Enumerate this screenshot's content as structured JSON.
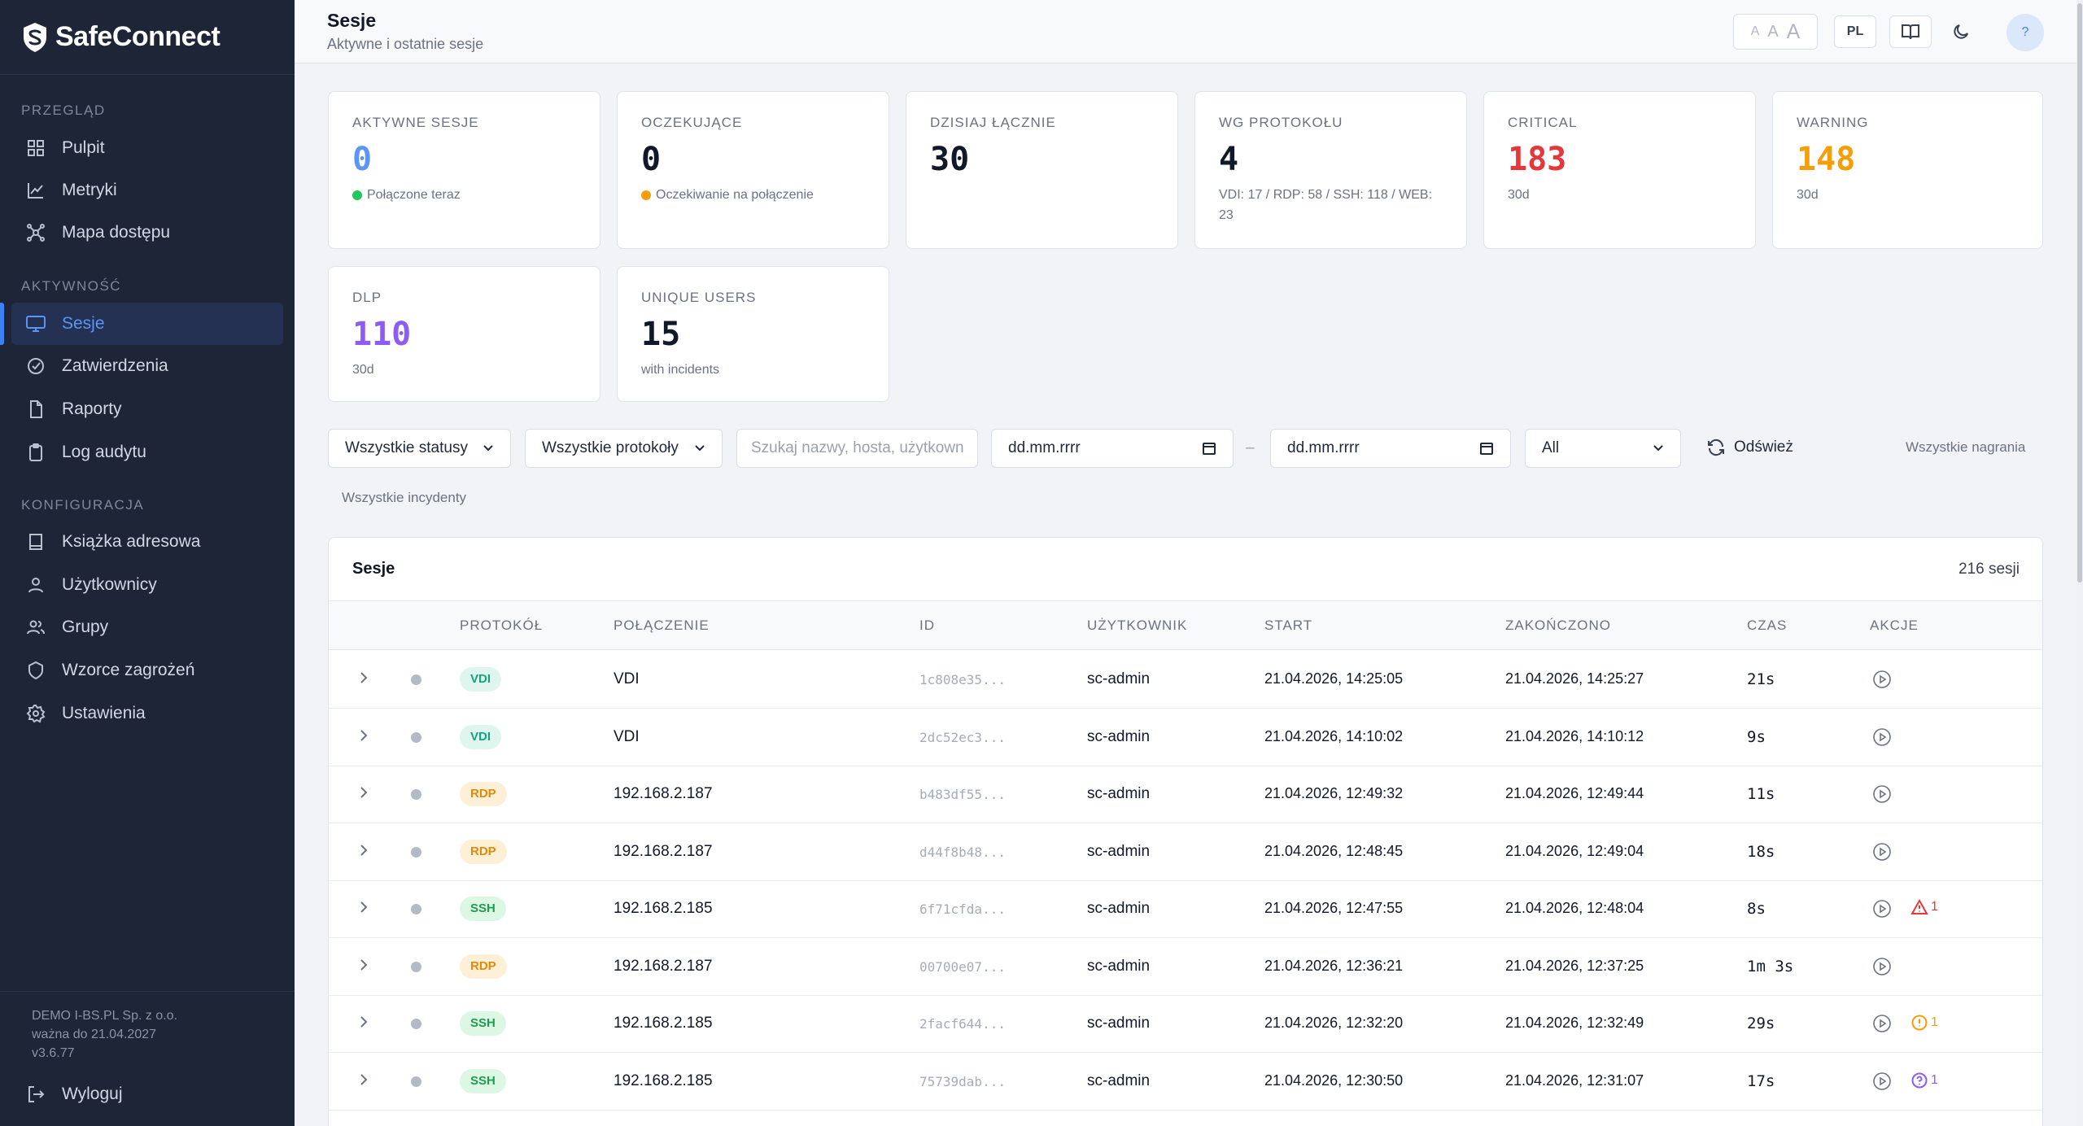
{
  "brand": {
    "name": "SafeConnect"
  },
  "sidebar": {
    "sections": [
      {
        "title": "PRZEGLĄD"
      },
      {
        "title": "AKTYWNOŚĆ"
      },
      {
        "title": "KONFIGURACJA"
      }
    ],
    "items": [
      {
        "label": "Pulpit",
        "icon": "grid-icon"
      },
      {
        "label": "Metryki",
        "icon": "chart-line-icon"
      },
      {
        "label": "Mapa dostępu",
        "icon": "network-map-icon"
      },
      {
        "label": "Sesje",
        "icon": "monitor-icon",
        "active": true
      },
      {
        "label": "Zatwierdzenia",
        "icon": "check-circle-icon"
      },
      {
        "label": "Raporty",
        "icon": "document-icon"
      },
      {
        "label": "Log audytu",
        "icon": "clipboard-icon"
      },
      {
        "label": "Książka adresowa",
        "icon": "book-icon"
      },
      {
        "label": "Użytkownicy",
        "icon": "user-icon"
      },
      {
        "label": "Grupy",
        "icon": "users-icon"
      },
      {
        "label": "Wzorce zagrożeń",
        "icon": "shield-icon"
      },
      {
        "label": "Ustawienia",
        "icon": "gear-icon"
      }
    ],
    "license": {
      "line1": "DEMO I-BS.PL Sp. z o.o.",
      "line2": "ważna do 21.04.2027",
      "version": "v3.6.77"
    },
    "logout_label": "Wyloguj"
  },
  "header": {
    "title": "Sesje",
    "subtitle": "Aktywne i ostatnie sesje",
    "font_sizes": [
      "A",
      "A",
      "A"
    ],
    "language": "PL",
    "help": "?"
  },
  "stats": [
    {
      "label": "AKTYWNE SESJE",
      "value": "0",
      "sub": "Połączone teraz",
      "color": "#5b95f5",
      "dot": "#22c55e"
    },
    {
      "label": "OCZEKUJĄCE",
      "value": "0",
      "sub": "Oczekiwanie na połączenie",
      "color": "#111827",
      "dot": "#f59e0b"
    },
    {
      "label": "DZISIAJ ŁĄCZNIE",
      "value": "30",
      "sub": "",
      "color": "#111827"
    },
    {
      "label": "WG PROTOKOŁU",
      "value": "4",
      "sub": "VDI: 17 / RDP: 58 / SSH: 118 / WEB: 23",
      "color": "#111827"
    },
    {
      "label": "CRITICAL",
      "value": "183",
      "sub": "30d",
      "color": "#e5383b"
    },
    {
      "label": "WARNING",
      "value": "148",
      "sub": "30d",
      "color": "#f59e0b"
    },
    {
      "label": "DLP",
      "value": "110",
      "sub": "30d",
      "color": "#8b5cf6"
    },
    {
      "label": "UNIQUE USERS",
      "value": "15",
      "sub": "with incidents",
      "color": "#111827"
    }
  ],
  "filters": {
    "status": "Wszystkie statusy",
    "protocol": "Wszystkie protokoły",
    "search_placeholder": "Szukaj nazwy, hosta, użytkown",
    "date_from": "dd.mm.rrrr",
    "date_separator": "–",
    "date_to": "dd.mm.rrrr",
    "scope": "All",
    "refresh_label": "Odśwież",
    "all_recordings": "Wszystkie nagrania",
    "all_incidents": "Wszystkie incydenty"
  },
  "table": {
    "title": "Sesje",
    "count": "216 sesji",
    "columns": [
      "PROTOKÓŁ",
      "POŁĄCZENIE",
      "ID",
      "UŻYTKOWNIK",
      "START",
      "ZAKOŃCZONO",
      "CZAS",
      "AKCJE"
    ],
    "rows": [
      {
        "protocol": "VDI",
        "connection": "VDI",
        "id": "1c808e35...",
        "user": "sc-admin",
        "start": "21.04.2026, 14:25:05",
        "end": "21.04.2026, 14:25:27",
        "duration": "21s",
        "incident": null
      },
      {
        "protocol": "VDI",
        "connection": "VDI",
        "id": "2dc52ec3...",
        "user": "sc-admin",
        "start": "21.04.2026, 14:10:02",
        "end": "21.04.2026, 14:10:12",
        "duration": "9s",
        "incident": null
      },
      {
        "protocol": "RDP",
        "connection": "192.168.2.187",
        "id": "b483df55...",
        "user": "sc-admin",
        "start": "21.04.2026, 12:49:32",
        "end": "21.04.2026, 12:49:44",
        "duration": "11s",
        "incident": null
      },
      {
        "protocol": "RDP",
        "connection": "192.168.2.187",
        "id": "d44f8b48...",
        "user": "sc-admin",
        "start": "21.04.2026, 12:48:45",
        "end": "21.04.2026, 12:49:04",
        "duration": "18s",
        "incident": null
      },
      {
        "protocol": "SSH",
        "connection": "192.168.2.185",
        "id": "6f71cfda...",
        "user": "sc-admin",
        "start": "21.04.2026, 12:47:55",
        "end": "21.04.2026, 12:48:04",
        "duration": "8s",
        "incident": {
          "type": "critical",
          "count": "1",
          "color": "#e5383b"
        }
      },
      {
        "protocol": "RDP",
        "connection": "192.168.2.187",
        "id": "00700e07...",
        "user": "sc-admin",
        "start": "21.04.2026, 12:36:21",
        "end": "21.04.2026, 12:37:25",
        "duration": "1m 3s",
        "incident": null
      },
      {
        "protocol": "SSH",
        "connection": "192.168.2.185",
        "id": "2facf644...",
        "user": "sc-admin",
        "start": "21.04.2026, 12:32:20",
        "end": "21.04.2026, 12:32:49",
        "duration": "29s",
        "incident": {
          "type": "warning",
          "count": "1",
          "color": "#f59e0b"
        }
      },
      {
        "protocol": "SSH",
        "connection": "192.168.2.185",
        "id": "75739dab...",
        "user": "sc-admin",
        "start": "21.04.2026, 12:30:50",
        "end": "21.04.2026, 12:31:07",
        "duration": "17s",
        "incident": {
          "type": "dlp",
          "count": "1",
          "color": "#8b5cf6"
        }
      }
    ]
  }
}
